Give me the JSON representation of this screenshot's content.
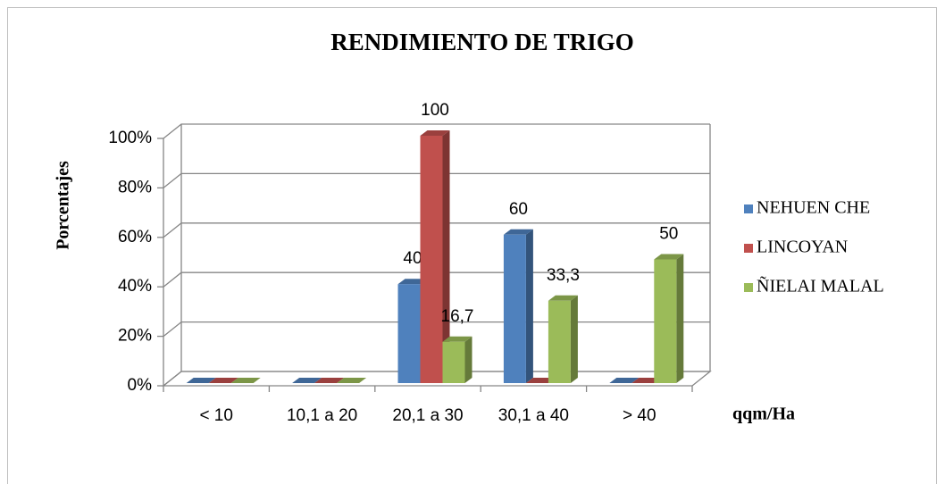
{
  "chart_data": {
    "type": "bar3d",
    "title": "RENDIMIENTO DE TRIGO",
    "y_axis_label": "Porcentajes",
    "x_axis_label": "qqm/Ha",
    "categories": [
      "< 10",
      "10,1 a 20",
      "20,1 a 30",
      "30,1 a 40",
      "> 40"
    ],
    "series": [
      {
        "name": "NEHUEN CHE",
        "color": "#4f81bd",
        "values": [
          0,
          0,
          40,
          60,
          0
        ],
        "value_labels": [
          null,
          null,
          "40",
          "60",
          null
        ]
      },
      {
        "name": "LINCOYAN",
        "color": "#c0504d",
        "values": [
          0,
          0,
          100,
          0,
          0
        ],
        "value_labels": [
          null,
          null,
          "100",
          null,
          null
        ]
      },
      {
        "name": "ÑIELAI MALAL",
        "color": "#9bbb59",
        "values": [
          0,
          0,
          16.7,
          33.3,
          50
        ],
        "value_labels": [
          null,
          null,
          "16,7",
          "33,3",
          "50"
        ]
      }
    ],
    "ylim": [
      0,
      100
    ],
    "yticks": [
      {
        "value": 0,
        "label": "0%"
      },
      {
        "value": 20,
        "label": "20%"
      },
      {
        "value": 40,
        "label": "40%"
      },
      {
        "value": 60,
        "label": "60%"
      },
      {
        "value": 80,
        "label": "80%"
      },
      {
        "value": 100,
        "label": "100%"
      }
    ],
    "grid": true,
    "legend": "right"
  }
}
